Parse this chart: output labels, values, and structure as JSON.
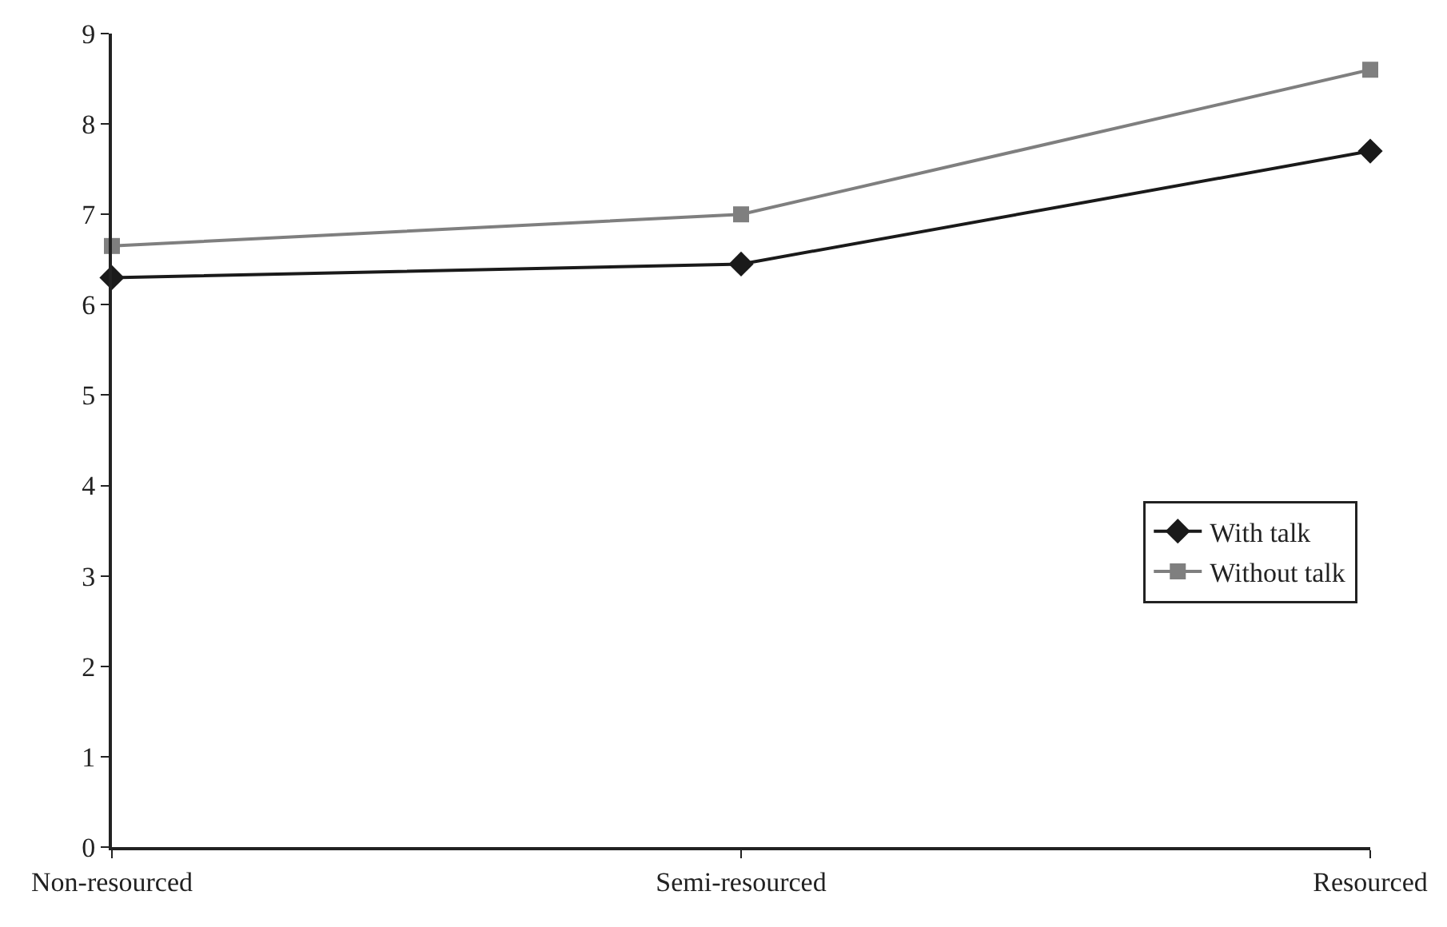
{
  "chart_data": {
    "type": "line",
    "categories": [
      "Non-resourced",
      "Semi-resourced",
      "Resourced"
    ],
    "series": [
      {
        "name": "With talk",
        "color": "#1a1a1a",
        "values": [
          6.3,
          6.45,
          7.7
        ],
        "marker": "diamond"
      },
      {
        "name": "Without talk",
        "color": "#7f7f7f",
        "values": [
          6.65,
          7.0,
          8.6
        ],
        "marker": "square"
      }
    ],
    "ylim": [
      0,
      9
    ],
    "yticks": [
      0,
      1,
      2,
      3,
      4,
      5,
      6,
      7,
      8,
      9
    ],
    "legend": "bottom right"
  }
}
